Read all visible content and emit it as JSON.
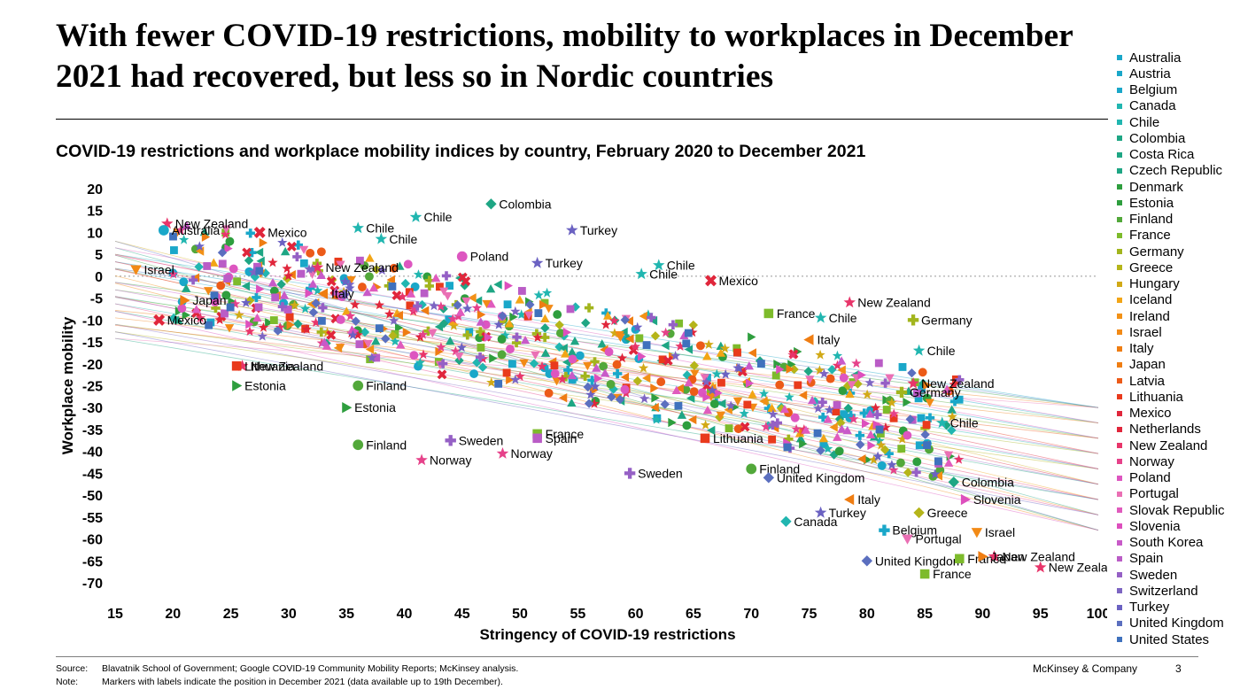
{
  "title": "With fewer COVID-19 restrictions, mobility to workplaces in December 2021 had recovered, but less so in Nordic countries",
  "subtitle": "COVID-19 restrictions and workplace mobility indices by country, February 2020 to December 2021",
  "footer": {
    "source_label": "Source:",
    "source_text": "Blavatnik School of Government; Google COVID-19 Community Mobility Reports; McKinsey analysis.",
    "note_label": "Note:",
    "note_text": "Markers with labels indicate the position in December 2021 (data available up to 19th December).",
    "brand": "McKinsey & Company",
    "page_number": "3"
  },
  "chart_data": {
    "type": "scatter",
    "title": "COVID-19 restrictions and workplace mobility indices by country, February 2020 to December 2021",
    "xlabel": "Stringency of COVID-19 restrictions",
    "ylabel": "Workplace mobility",
    "xlim": [
      15,
      100
    ],
    "ylim": [
      -70,
      20
    ],
    "xticks": [
      15,
      20,
      25,
      30,
      35,
      40,
      45,
      50,
      55,
      60,
      65,
      70,
      75,
      80,
      85,
      90,
      95,
      100
    ],
    "yticks": [
      20,
      15,
      10,
      5,
      0,
      -5,
      -10,
      -15,
      -20,
      -25,
      -30,
      -35,
      -40,
      -45,
      -50,
      -55,
      -60,
      -65,
      -70
    ],
    "grid": false,
    "zero_line": "dotted",
    "legend_position": "right",
    "series": [
      {
        "name": "Australia",
        "color": "#1aa7c9",
        "marker": "circle"
      },
      {
        "name": "Austria",
        "color": "#1aa7c9",
        "marker": "square"
      },
      {
        "name": "Belgium",
        "color": "#1aa7c9",
        "marker": "plus"
      },
      {
        "name": "Canada",
        "color": "#21b6b0",
        "marker": "diamond"
      },
      {
        "name": "Chile",
        "color": "#21b6b0",
        "marker": "star"
      },
      {
        "name": "Colombia",
        "color": "#1ea684",
        "marker": "diamond"
      },
      {
        "name": "Costa Rica",
        "color": "#1ea684",
        "marker": "triangle"
      },
      {
        "name": "Czech Republic",
        "color": "#1ea684",
        "marker": "triangle-left"
      },
      {
        "name": "Denmark",
        "color": "#2e9e3e",
        "marker": "circle"
      },
      {
        "name": "Estonia",
        "color": "#2e9e3e",
        "marker": "triangle-right"
      },
      {
        "name": "Finland",
        "color": "#52a83a",
        "marker": "circle"
      },
      {
        "name": "France",
        "color": "#7dbb2b",
        "marker": "square"
      },
      {
        "name": "Germany",
        "color": "#a2b51d",
        "marker": "plus"
      },
      {
        "name": "Greece",
        "color": "#b5b51a",
        "marker": "diamond"
      },
      {
        "name": "Hungary",
        "color": "#d1a916",
        "marker": "star"
      },
      {
        "name": "Iceland",
        "color": "#f2a516",
        "marker": "triangle"
      },
      {
        "name": "Ireland",
        "color": "#f29116",
        "marker": "triangle-left"
      },
      {
        "name": "Israel",
        "color": "#f28a16",
        "marker": "triangle-down"
      },
      {
        "name": "Italy",
        "color": "#ef7d12",
        "marker": "triangle-left"
      },
      {
        "name": "Japan",
        "color": "#ef7d12",
        "marker": "triangle-right"
      },
      {
        "name": "Latvia",
        "color": "#ec5b18",
        "marker": "circle"
      },
      {
        "name": "Lithuania",
        "color": "#e93a1c",
        "marker": "square"
      },
      {
        "name": "Mexico",
        "color": "#e0263b",
        "marker": "x"
      },
      {
        "name": "Netherlands",
        "color": "#e0263b",
        "marker": "star"
      },
      {
        "name": "New Zealand",
        "color": "#e8356a",
        "marker": "star"
      },
      {
        "name": "Norway",
        "color": "#e6428a",
        "marker": "star"
      },
      {
        "name": "Poland",
        "color": "#dd56c0",
        "marker": "circle"
      },
      {
        "name": "Portugal",
        "color": "#ea6fb4",
        "marker": "triangle-down"
      },
      {
        "name": "Slovak Republic",
        "color": "#e05bbd",
        "marker": "triangle"
      },
      {
        "name": "Slovenia",
        "color": "#dd4fbd",
        "marker": "triangle-right"
      },
      {
        "name": "South Korea",
        "color": "#c85ac8",
        "marker": "triangle"
      },
      {
        "name": "Spain",
        "color": "#ba5cc6",
        "marker": "square"
      },
      {
        "name": "Sweden",
        "color": "#9560c5",
        "marker": "plus"
      },
      {
        "name": "Switzerland",
        "color": "#7d65c2",
        "marker": "star"
      },
      {
        "name": "Turkey",
        "color": "#6b62c2",
        "marker": "star"
      },
      {
        "name": "United Kingdom",
        "color": "#5b6fbf",
        "marker": "diamond"
      },
      {
        "name": "United States",
        "color": "#3f71bd",
        "marker": "square"
      }
    ],
    "labeled_points": [
      {
        "label": "New Zealand",
        "x": 19.5,
        "y": 12
      },
      {
        "label": "Australia",
        "x": 19.2,
        "y": 10.5
      },
      {
        "label": "Mexico",
        "x": 27.5,
        "y": 10
      },
      {
        "label": "New Zealand",
        "x": 32.5,
        "y": 2
      },
      {
        "label": "Israel",
        "x": 16.8,
        "y": 1.5
      },
      {
        "label": "Japan",
        "x": 21,
        "y": -5.5
      },
      {
        "label": "Italy",
        "x": 33,
        "y": -4
      },
      {
        "label": "Mexico",
        "x": 18.8,
        "y": -10
      },
      {
        "label": "New Zealand",
        "x": 26,
        "y": -20.5
      },
      {
        "label": "Lithuania",
        "x": 25.5,
        "y": -20.5
      },
      {
        "label": "Estonia",
        "x": 25.5,
        "y": -25
      },
      {
        "label": "Finland",
        "x": 36,
        "y": -25
      },
      {
        "label": "Estonia",
        "x": 35,
        "y": -30
      },
      {
        "label": "Finland",
        "x": 36,
        "y": -38.5
      },
      {
        "label": "Norway",
        "x": 41.5,
        "y": -42
      },
      {
        "label": "Sweden",
        "x": 44,
        "y": -37.5
      },
      {
        "label": "Chile",
        "x": 36,
        "y": 11
      },
      {
        "label": "Chile",
        "x": 41,
        "y": 13.5
      },
      {
        "label": "Chile",
        "x": 38,
        "y": 8.5
      },
      {
        "label": "Poland",
        "x": 45,
        "y": 4.5
      },
      {
        "label": "Colombia",
        "x": 47.5,
        "y": 16.5
      },
      {
        "label": "Turkey",
        "x": 54.5,
        "y": 10.5
      },
      {
        "label": "Turkey",
        "x": 51.5,
        "y": 3
      },
      {
        "label": "Norway",
        "x": 48.5,
        "y": -40.5
      },
      {
        "label": "France",
        "x": 51.5,
        "y": -36
      },
      {
        "label": "Spain",
        "x": 51.5,
        "y": -37
      },
      {
        "label": "Chile",
        "x": 62,
        "y": 2.5
      },
      {
        "label": "Chile",
        "x": 60.5,
        "y": 0.5
      },
      {
        "label": "Mexico",
        "x": 66.5,
        "y": -1
      },
      {
        "label": "Sweden",
        "x": 59.5,
        "y": -45
      },
      {
        "label": "Lithuania",
        "x": 66,
        "y": -37
      },
      {
        "label": "France",
        "x": 71.5,
        "y": -8.5
      },
      {
        "label": "New Zealand",
        "x": 78.5,
        "y": -6
      },
      {
        "label": "Chile",
        "x": 76,
        "y": -9.5
      },
      {
        "label": "Germany",
        "x": 84,
        "y": -10
      },
      {
        "label": "Italy",
        "x": 75,
        "y": -14.5
      },
      {
        "label": "Chile",
        "x": 84.5,
        "y": -17
      },
      {
        "label": "New Zealand",
        "x": 84,
        "y": -24.5
      },
      {
        "label": "Germany",
        "x": 83,
        "y": -26.5
      },
      {
        "label": "Chile",
        "x": 86.5,
        "y": -33.5
      },
      {
        "label": "Finland",
        "x": 70,
        "y": -44
      },
      {
        "label": "United Kingdom",
        "x": 71.5,
        "y": -46
      },
      {
        "label": "Italy",
        "x": 78.5,
        "y": -51
      },
      {
        "label": "Turkey",
        "x": 76,
        "y": -54
      },
      {
        "label": "Canada",
        "x": 73,
        "y": -56
      },
      {
        "label": "Belgium",
        "x": 81.5,
        "y": -58
      },
      {
        "label": "Greece",
        "x": 84.5,
        "y": -54
      },
      {
        "label": "Portugal",
        "x": 83.5,
        "y": -60
      },
      {
        "label": "United Kingdom",
        "x": 80,
        "y": -65
      },
      {
        "label": "France",
        "x": 88,
        "y": -64.5
      },
      {
        "label": "Colombia",
        "x": 87.5,
        "y": -47
      },
      {
        "label": "Slovenia",
        "x": 88.5,
        "y": -51
      },
      {
        "label": "Israel",
        "x": 89.5,
        "y": -58.5
      },
      {
        "label": "New Zealand",
        "x": 91,
        "y": -64
      },
      {
        "label": "Japan",
        "x": 90,
        "y": -64
      },
      {
        "label": "France",
        "x": 85,
        "y": -68
      },
      {
        "label": "New Zealand",
        "x": 95,
        "y": -66.5
      }
    ]
  }
}
